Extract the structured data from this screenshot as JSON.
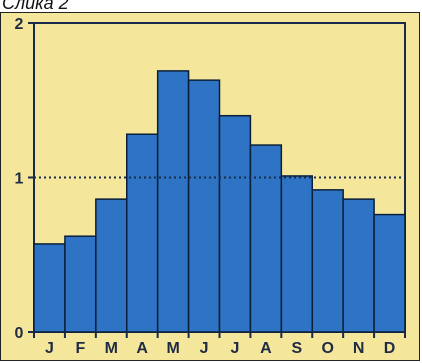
{
  "caption": "Слика 2",
  "chart_data": {
    "type": "bar",
    "categories": [
      "J",
      "F",
      "M",
      "A",
      "M",
      "J",
      "J",
      "A",
      "S",
      "O",
      "N",
      "D"
    ],
    "values": [
      0.57,
      0.62,
      0.86,
      1.28,
      1.69,
      1.63,
      1.4,
      1.21,
      1.01,
      0.92,
      0.86,
      0.76
    ],
    "ylim": [
      0,
      2
    ],
    "yticks": [
      "0",
      "1",
      "2"
    ],
    "reference_line": {
      "value": 1.0,
      "style": "dotted"
    },
    "colors": {
      "bar_fill": "#2f73c4",
      "bar_stroke": "#0b1f3a",
      "background": "#f4e79b",
      "reference_line": "#1a2a4a"
    }
  }
}
